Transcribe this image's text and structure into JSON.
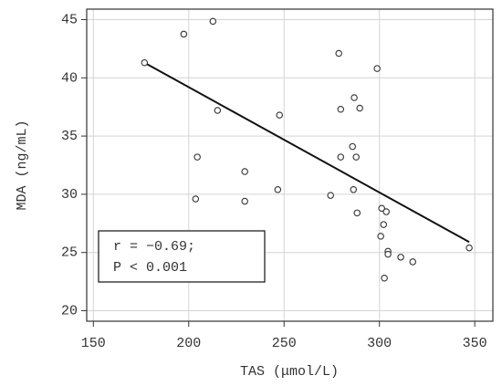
{
  "chart_data": {
    "type": "scatter",
    "x_label": "TAS (μmol/L)",
    "y_label": "MDA (ng/mL)",
    "xlim": [
      146.5,
      359.5
    ],
    "ylim": [
      19.1,
      45.9
    ],
    "xticks": [
      150,
      200,
      250,
      300,
      350
    ],
    "yticks": [
      20,
      25,
      30,
      35,
      40,
      45
    ],
    "grid": true,
    "series": [
      {
        "color": "#333333",
        "x": [
          176.8,
          197.4,
          212.7,
          215.1,
          204.5,
          203.6,
          229.4,
          229.4,
          247.6,
          246.7,
          274.4,
          278.7,
          279.7,
          279.7,
          285.9,
          286.8,
          289.7,
          287.8,
          286.4,
          288.3,
          298.8,
          301.2,
          303.6,
          302.2,
          300.7,
          304.5,
          304.5,
          311.2,
          317.5,
          302.6,
          347.1
        ],
        "values": [
          41.3,
          43.75,
          44.85,
          37.2,
          33.2,
          29.6,
          31.95,
          29.4,
          36.8,
          30.4,
          29.9,
          42.1,
          37.3,
          33.2,
          34.1,
          38.3,
          37.4,
          33.2,
          30.4,
          28.4,
          40.8,
          28.8,
          28.5,
          27.4,
          26.4,
          25.1,
          24.85,
          24.6,
          24.2,
          22.8,
          25.4
        ]
      }
    ],
    "regression": {
      "color": "#111111",
      "x": [
        176.8,
        347.1
      ],
      "values": [
        41.3,
        25.9
      ]
    },
    "annotations": [
      "r = −0.69;",
      "P < 0.001"
    ]
  }
}
